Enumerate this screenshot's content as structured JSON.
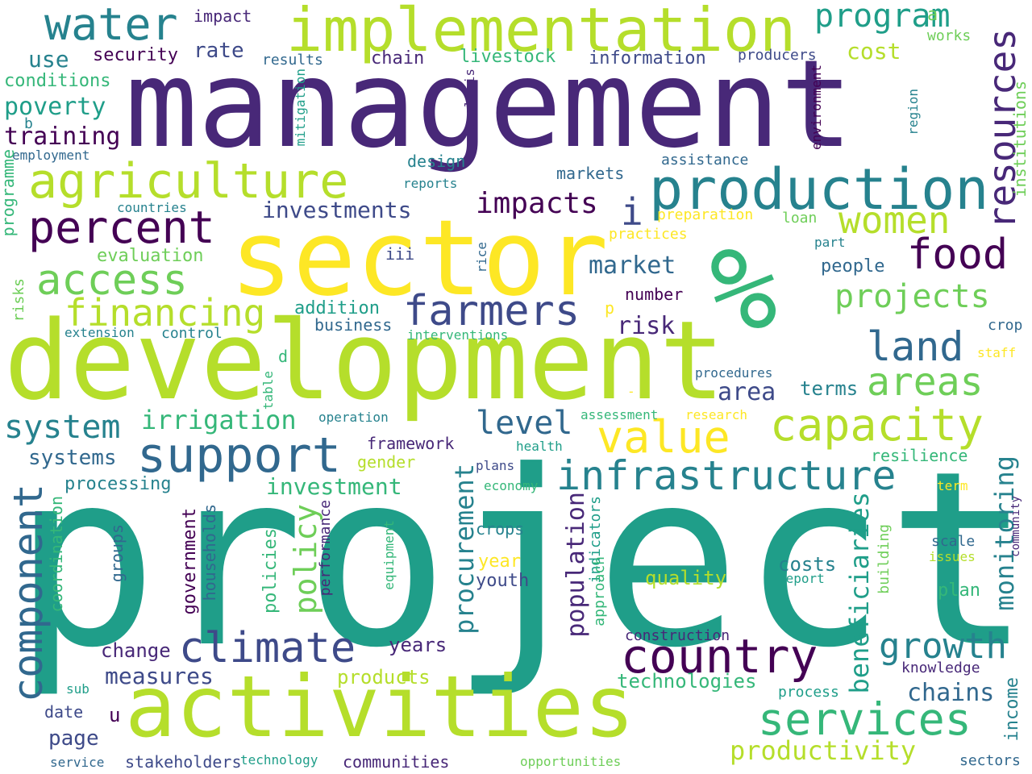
{
  "colors": [
    "#440154",
    "#482878",
    "#3e4a89",
    "#31688e",
    "#26828e",
    "#1f9e89",
    "#35b779",
    "#6ece58",
    "#b5de2b",
    "#fde725"
  ],
  "words": [
    "project",
    "management",
    "development",
    "sector",
    "activities",
    "%",
    "production",
    "implementation",
    "agriculture",
    "farmers",
    "percent",
    "support",
    "climate",
    "country",
    "infrastructure",
    "services",
    "capacity",
    "value",
    "women",
    "food",
    "access",
    "financing",
    "land",
    "areas",
    "resources",
    "water",
    "program",
    "component",
    "growth",
    "projects",
    "system",
    "i",
    "level",
    "irrigation",
    "impacts",
    "policy",
    "procurement",
    "population",
    "monitoring",
    "beneficiaries",
    "investments",
    "investment",
    "measures",
    "market",
    "risk",
    "chains",
    "productivity",
    "systems",
    "processing",
    "page",
    "training",
    "poverty",
    "use",
    "security",
    "impact",
    "rate",
    "cost",
    "a",
    "works",
    "results",
    "chain",
    "livestock",
    "information",
    "producers",
    "conditions",
    "b",
    "employment",
    "programme",
    "mitigation",
    "analysis",
    "design",
    "assistance",
    "markets",
    "reports",
    "region",
    "environment",
    "institutions",
    "countries",
    "preparation",
    "loan",
    "practices",
    "part",
    "iii",
    "rice",
    "evaluation",
    "people",
    "number",
    "addition",
    "p",
    "business",
    "risks",
    "extension",
    "control",
    "interventions",
    "crop",
    "d",
    "table",
    "staff",
    "procedures",
    "area",
    "terms",
    "-",
    "operation",
    "assessment",
    "research",
    "framework",
    "health",
    "gender",
    "resilience",
    "plans",
    "economy",
    "term",
    "community",
    "coordination",
    "groups",
    "government",
    "households",
    "policies",
    "performance",
    "equipment",
    "indicators",
    "approach",
    "crops",
    "year",
    "youth",
    "quality",
    "costs",
    "report",
    "scale",
    "issues",
    "building",
    "plan",
    "income",
    "change",
    "years",
    "construction",
    "knowledge",
    "technologies",
    "process",
    "u",
    "products",
    "sub",
    "date",
    "service",
    "stakeholders",
    "technology",
    "communities",
    "opportunities",
    "sectors"
  ]
}
